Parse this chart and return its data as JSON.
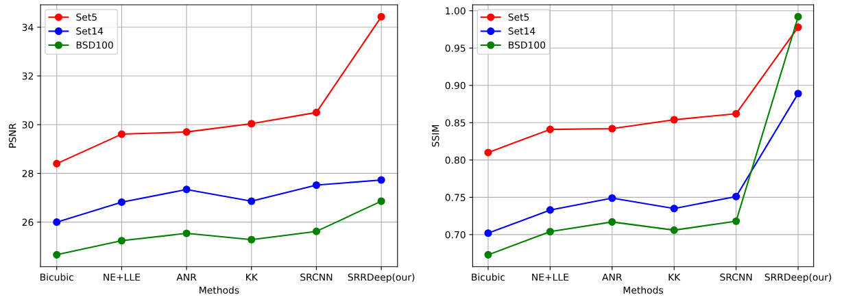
{
  "chart_data": [
    {
      "type": "line",
      "xlabel": "Methods",
      "ylabel": "PSNR",
      "categories": [
        "Bicubic",
        "NE+LLE",
        "ANR",
        "KK",
        "SRCNN",
        "SRRDeep(our)"
      ],
      "series": [
        {
          "name": "Set5",
          "color": "#ff0000",
          "values": [
            28.4,
            29.61,
            29.7,
            30.04,
            30.5,
            34.43
          ]
        },
        {
          "name": "Set14",
          "color": "#0000ff",
          "values": [
            26.0,
            26.82,
            27.34,
            26.86,
            27.52,
            27.73
          ]
        },
        {
          "name": "BSD100",
          "color": "#008000",
          "values": [
            24.66,
            25.24,
            25.54,
            25.28,
            25.62,
            26.86
          ]
        }
      ],
      "ylim": [
        24.17,
        34.92
      ],
      "yticks": [
        26,
        28,
        30,
        32,
        34
      ],
      "grid": true,
      "legend": "top left",
      "marker": "circle",
      "line_style": "solid"
    },
    {
      "type": "line",
      "xlabel": "Methods",
      "ylabel": "SSIM",
      "categories": [
        "Bicubic",
        "NE+LLE",
        "ANR",
        "KK",
        "SRCNN",
        "SRRDeep(our)"
      ],
      "series": [
        {
          "name": "Set5",
          "color": "#ff0000",
          "values": [
            0.81,
            0.841,
            0.842,
            0.854,
            0.862,
            0.978
          ]
        },
        {
          "name": "Set14",
          "color": "#0000ff",
          "values": [
            0.702,
            0.733,
            0.749,
            0.735,
            0.751,
            0.889
          ]
        },
        {
          "name": "BSD100",
          "color": "#008000",
          "values": [
            0.673,
            0.704,
            0.717,
            0.706,
            0.718,
            0.992
          ]
        }
      ],
      "ylim": [
        0.657,
        1.008
      ],
      "yticks": [
        {
          "value": 0.7,
          "label": "0.70"
        },
        {
          "value": 0.75,
          "label": "0.75"
        },
        {
          "value": 0.8,
          "label": "0.80"
        },
        {
          "value": 0.85,
          "label": "0.85"
        },
        {
          "value": 0.9,
          "label": "0.90"
        },
        {
          "value": 0.95,
          "label": "0.95"
        },
        {
          "value": 1.0,
          "label": "1.00"
        }
      ],
      "grid": true,
      "legend": "top left",
      "marker": "circle",
      "line_style": "solid"
    }
  ]
}
